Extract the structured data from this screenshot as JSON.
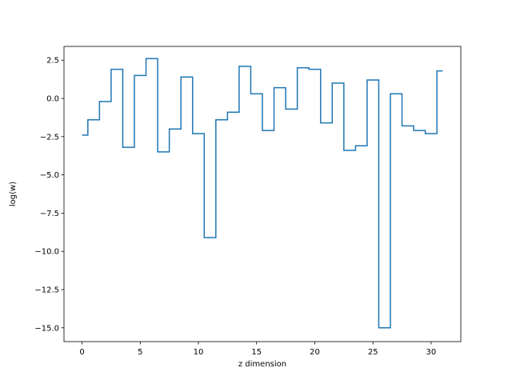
{
  "chart_data": {
    "type": "line",
    "drawstyle": "steps-mid",
    "title": "",
    "xlabel": "z dimension",
    "ylabel": "log(w)",
    "xlim": [
      -1.55,
      32.55
    ],
    "ylim": [
      -15.9,
      3.4
    ],
    "xticks": [
      0,
      5,
      10,
      15,
      20,
      25,
      30
    ],
    "yticks": [
      2.5,
      0.0,
      -2.5,
      -5.0,
      -7.5,
      -10.0,
      -12.5,
      -15.0
    ],
    "ytick_labels": [
      "2.5",
      "0.0",
      "−2.5",
      "−5.0",
      "−7.5",
      "−10.0",
      "−12.5",
      "−15.0"
    ],
    "grid": false,
    "line_color": "#1f77b4",
    "series": [
      {
        "x": [
          0,
          1,
          2,
          3,
          4,
          5,
          6,
          7,
          8,
          9,
          10,
          11,
          12,
          13,
          14,
          15,
          16,
          17,
          18,
          19,
          20,
          21,
          22,
          23,
          24,
          25,
          26,
          27,
          28,
          29,
          30,
          31
        ],
        "values": [
          -2.4,
          -1.4,
          -0.2,
          1.9,
          -3.2,
          1.5,
          2.6,
          -3.5,
          -2.0,
          1.4,
          -2.3,
          -9.1,
          -1.4,
          -0.9,
          2.1,
          0.3,
          -2.1,
          0.7,
          -0.7,
          2.0,
          1.9,
          -1.6,
          1.0,
          -3.4,
          -3.1,
          1.2,
          -15.0,
          0.3,
          -1.8,
          -2.1,
          -2.3,
          1.8
        ]
      }
    ]
  }
}
